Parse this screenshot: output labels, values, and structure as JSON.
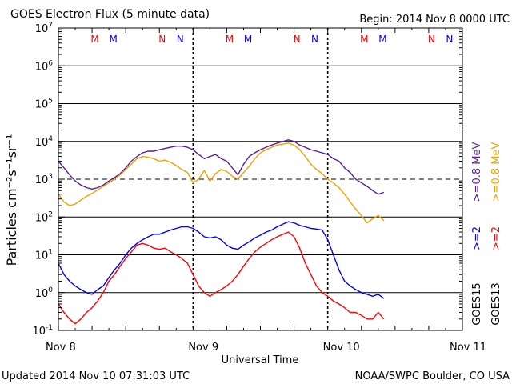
{
  "header": {
    "title": "GOES Electron Flux (5 minute data)",
    "begin": "Begin: 2014 Nov 8 0000 UTC"
  },
  "footer": {
    "updated": "Updated 2014 Nov 10 07:31:03 UTC",
    "credit": "NOAA/SWPC Boulder, CO USA"
  },
  "right_labels": {
    "mev08_goes15": ">=0.8  MeV",
    "mev08_goes13": ">=0.8  MeV",
    "mev2_goes15": ">=2",
    "mev2_goes13": ">=2",
    "goes15": "GOES15",
    "goes13": "GOES13"
  },
  "colors": {
    "goes15_08": "#5b1a9e",
    "goes13_08": "#f0a000",
    "goes15_2": "#0000ff",
    "goes13_2": "#ff0000",
    "marker_M": "#ff0000",
    "marker_N": "#0000ff"
  },
  "chart_data": {
    "type": "line",
    "xlabel": "Universal Time",
    "ylabel": "Particles cm⁻²s⁻¹sr⁻¹",
    "y_scale": "log",
    "ylim": [
      0.1,
      10000000
    ],
    "xlim_hours": [
      0,
      72
    ],
    "x_tick_labels": [
      "Nov 8",
      "Nov 9",
      "Nov 10",
      "Nov 11"
    ],
    "x_tick_hours": [
      0,
      24,
      48,
      72
    ],
    "y_tick_exponents": [
      -1,
      0,
      1,
      2,
      3,
      4,
      5,
      6,
      7
    ],
    "grid": true,
    "day_boundary_lines": "dashed",
    "reference_line_y": 1000,
    "midnight_noon_markers": [
      {
        "label": "M",
        "hour": 6.5,
        "color": "red"
      },
      {
        "label": "M",
        "hour": 9.8,
        "color": "blue"
      },
      {
        "label": "N",
        "hour": 18.5,
        "color": "red"
      },
      {
        "label": "N",
        "hour": 21.7,
        "color": "blue"
      },
      {
        "label": "M",
        "hour": 30.5,
        "color": "red"
      },
      {
        "label": "M",
        "hour": 33.8,
        "color": "blue"
      },
      {
        "label": "N",
        "hour": 42.5,
        "color": "red"
      },
      {
        "label": "N",
        "hour": 45.7,
        "color": "blue"
      },
      {
        "label": "M",
        "hour": 54.5,
        "color": "red"
      },
      {
        "label": "M",
        "hour": 57.8,
        "color": "blue"
      },
      {
        "label": "N",
        "hour": 66.5,
        "color": "red"
      },
      {
        "label": "N",
        "hour": 69.7,
        "color": "blue"
      }
    ],
    "series": [
      {
        "name": "GOES15 >=0.8 MeV",
        "color": "#5b1a9e",
        "x": [
          0,
          1,
          2,
          3,
          4,
          5,
          6,
          7,
          8,
          9,
          10,
          11,
          12,
          13,
          14,
          15,
          16,
          17,
          18,
          19,
          20,
          21,
          22,
          23,
          24,
          25,
          26,
          27,
          28,
          29,
          30,
          31,
          32,
          33,
          34,
          35,
          36,
          37,
          38,
          39,
          40,
          41,
          42,
          43,
          44,
          45,
          46,
          47,
          48,
          49,
          50,
          51,
          52,
          53,
          54,
          55,
          56,
          57,
          58
        ],
        "y": [
          3000,
          2000,
          1300,
          900,
          700,
          600,
          550,
          600,
          700,
          900,
          1100,
          1400,
          2000,
          3000,
          4000,
          5000,
          5500,
          5500,
          6000,
          6500,
          7000,
          7500,
          7500,
          7000,
          6000,
          4500,
          3500,
          4000,
          4500,
          3500,
          3000,
          2000,
          1300,
          2500,
          4000,
          5000,
          6000,
          7000,
          8000,
          9000,
          10000,
          11000,
          10000,
          8000,
          7000,
          6000,
          5500,
          5000,
          4500,
          3500,
          3000,
          2000,
          1500,
          1000,
          800,
          650,
          500,
          400,
          450
        ]
      },
      {
        "name": "GOES13 >=0.8 MeV",
        "color": "#f0a000",
        "x": [
          0,
          1,
          2,
          3,
          4,
          5,
          6,
          7,
          8,
          9,
          10,
          11,
          12,
          13,
          14,
          15,
          16,
          17,
          18,
          19,
          20,
          21,
          22,
          23,
          24,
          25,
          26,
          27,
          28,
          29,
          30,
          31,
          32,
          33,
          34,
          35,
          36,
          37,
          38,
          39,
          40,
          41,
          42,
          43,
          44,
          45,
          46,
          47,
          48,
          49,
          50,
          51,
          52,
          53,
          54,
          55,
          56,
          57,
          58
        ],
        "y": [
          400,
          250,
          200,
          220,
          280,
          350,
          420,
          520,
          650,
          800,
          1000,
          1300,
          1800,
          2500,
          3500,
          4000,
          3800,
          3500,
          3000,
          3200,
          2800,
          2300,
          1800,
          1500,
          800,
          1000,
          1700,
          900,
          1400,
          1800,
          1600,
          1200,
          1000,
          1500,
          2200,
          3500,
          5000,
          6000,
          7000,
          8000,
          8500,
          9000,
          8000,
          6000,
          4000,
          2500,
          1800,
          1400,
          1000,
          800,
          600,
          400,
          250,
          160,
          110,
          70,
          90,
          110,
          80
        ]
      },
      {
        "name": "GOES15 >=2 MeV",
        "color": "#0000ff",
        "x": [
          0,
          1,
          2,
          3,
          4,
          5,
          6,
          7,
          8,
          9,
          10,
          11,
          12,
          13,
          14,
          15,
          16,
          17,
          18,
          19,
          20,
          21,
          22,
          23,
          24,
          25,
          26,
          27,
          28,
          29,
          30,
          31,
          32,
          33,
          34,
          35,
          36,
          37,
          38,
          39,
          40,
          41,
          42,
          43,
          44,
          45,
          46,
          47,
          48,
          49,
          50,
          51,
          52,
          53,
          54,
          55,
          56,
          57,
          58
        ],
        "y": [
          6,
          3,
          2,
          1.5,
          1.2,
          1,
          0.9,
          1.2,
          1.5,
          2.5,
          4,
          6,
          10,
          15,
          20,
          25,
          30,
          35,
          35,
          40,
          45,
          50,
          55,
          55,
          50,
          40,
          30,
          28,
          30,
          25,
          18,
          15,
          14,
          18,
          22,
          28,
          33,
          40,
          45,
          55,
          65,
          75,
          70,
          60,
          55,
          50,
          48,
          45,
          25,
          10,
          4,
          2,
          1.5,
          1.2,
          1,
          0.9,
          0.8,
          0.9,
          0.7
        ]
      },
      {
        "name": "GOES13 >=2 MeV",
        "color": "#ff0000",
        "x": [
          0,
          1,
          2,
          3,
          4,
          5,
          6,
          7,
          8,
          9,
          10,
          11,
          12,
          13,
          14,
          15,
          16,
          17,
          18,
          19,
          20,
          21,
          22,
          23,
          24,
          25,
          26,
          27,
          28,
          29,
          30,
          31,
          32,
          33,
          34,
          35,
          36,
          37,
          38,
          39,
          40,
          41,
          42,
          43,
          44,
          45,
          46,
          47,
          48,
          49,
          50,
          51,
          52,
          53,
          54,
          55,
          56,
          57,
          58
        ],
        "y": [
          0.5,
          0.3,
          0.2,
          0.15,
          0.2,
          0.3,
          0.4,
          0.6,
          1,
          2,
          3,
          5,
          8,
          12,
          18,
          20,
          18,
          15,
          14,
          15,
          12,
          10,
          8,
          6,
          3,
          1.5,
          1,
          0.8,
          1,
          1.2,
          1.5,
          2,
          3,
          5,
          8,
          12,
          16,
          20,
          25,
          30,
          35,
          40,
          30,
          15,
          6,
          3,
          1.5,
          1,
          0.8,
          0.6,
          0.5,
          0.4,
          0.3,
          0.3,
          0.25,
          0.2,
          0.2,
          0.3,
          0.2
        ]
      }
    ]
  }
}
